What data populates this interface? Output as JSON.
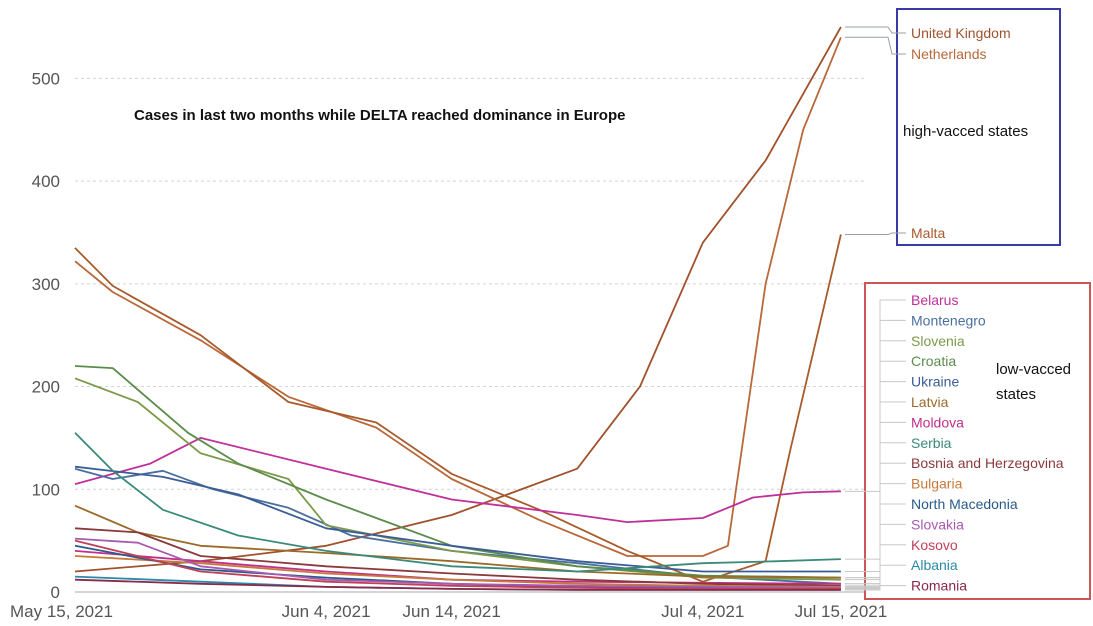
{
  "chart_data": {
    "type": "line",
    "title": "",
    "xlabel": "",
    "ylabel": "",
    "ylim": [
      0,
      550
    ],
    "xlim": [
      "2021-05-15",
      "2021-07-17"
    ],
    "grid": true,
    "y_ticks": [
      "0",
      "100",
      "200",
      "300",
      "400",
      "500"
    ],
    "y_tick_values": [
      0,
      100,
      200,
      300,
      400,
      500
    ],
    "x_ticks": [
      {
        "label": "May 15, 2021",
        "date": "2021-05-15"
      },
      {
        "label": "Jun 4, 2021",
        "date": "2021-06-04"
      },
      {
        "label": "Jun 14, 2021",
        "date": "2021-06-14"
      },
      {
        "label": "Jul 4, 2021",
        "date": "2021-07-04"
      },
      {
        "label": "Jul 15, 2021",
        "date": "2021-07-15"
      }
    ],
    "annotations": {
      "headline": "Cases in last two months while DELTA reached dominance in Europe",
      "high_group": "high-vacced states",
      "low_group_line1": "low-vacced",
      "low_group_line2": "states"
    },
    "group_box_colors": {
      "high": "#3a3aa6",
      "low": "#cc5555"
    },
    "series": [
      {
        "name": "United Kingdom",
        "color": "#a0522d",
        "group": "high",
        "points": [
          [
            "2021-05-15",
            20
          ],
          [
            "2021-05-25",
            30
          ],
          [
            "2021-06-04",
            45
          ],
          [
            "2021-06-14",
            75
          ],
          [
            "2021-06-24",
            120
          ],
          [
            "2021-06-29",
            200
          ],
          [
            "2021-07-04",
            340
          ],
          [
            "2021-07-09",
            420
          ],
          [
            "2021-07-15",
            550
          ]
        ]
      },
      {
        "name": "Netherlands",
        "color": "#b8683a",
        "group": "high",
        "points": [
          [
            "2021-05-15",
            322
          ],
          [
            "2021-05-18",
            292
          ],
          [
            "2021-05-25",
            245
          ],
          [
            "2021-06-01",
            190
          ],
          [
            "2021-06-08",
            160
          ],
          [
            "2021-06-14",
            110
          ],
          [
            "2021-06-21",
            70
          ],
          [
            "2021-06-28",
            35
          ],
          [
            "2021-07-04",
            35
          ],
          [
            "2021-07-06",
            45
          ],
          [
            "2021-07-09",
            300
          ],
          [
            "2021-07-12",
            450
          ],
          [
            "2021-07-15",
            540
          ]
        ]
      },
      {
        "name": "Malta",
        "color": "#a85a2a",
        "group": "high",
        "points": [
          [
            "2021-05-15",
            335
          ],
          [
            "2021-05-18",
            298
          ],
          [
            "2021-05-25",
            250
          ],
          [
            "2021-06-01",
            185
          ],
          [
            "2021-06-08",
            165
          ],
          [
            "2021-06-14",
            115
          ],
          [
            "2021-06-21",
            80
          ],
          [
            "2021-06-28",
            40
          ],
          [
            "2021-07-04",
            10
          ],
          [
            "2021-07-09",
            30
          ],
          [
            "2021-07-11",
            140
          ],
          [
            "2021-07-15",
            348
          ]
        ]
      },
      {
        "name": "Belarus",
        "color": "#c0309a",
        "group": "low",
        "points": [
          [
            "2021-05-15",
            105
          ],
          [
            "2021-05-21",
            125
          ],
          [
            "2021-05-25",
            150
          ],
          [
            "2021-06-04",
            120
          ],
          [
            "2021-06-14",
            90
          ],
          [
            "2021-06-24",
            75
          ],
          [
            "2021-06-28",
            68
          ],
          [
            "2021-07-04",
            72
          ],
          [
            "2021-07-08",
            92
          ],
          [
            "2021-07-12",
            97
          ],
          [
            "2021-07-15",
            98
          ]
        ]
      },
      {
        "name": "Montenegro",
        "color": "#4a6f9f",
        "group": "low",
        "points": [
          [
            "2021-05-15",
            120
          ],
          [
            "2021-05-18",
            110
          ],
          [
            "2021-05-22",
            118
          ],
          [
            "2021-05-26",
            100
          ],
          [
            "2021-06-01",
            82
          ],
          [
            "2021-06-06",
            55
          ],
          [
            "2021-06-14",
            40
          ],
          [
            "2021-06-24",
            28
          ],
          [
            "2021-07-04",
            15
          ],
          [
            "2021-07-15",
            8
          ]
        ]
      },
      {
        "name": "Slovenia",
        "color": "#7c9a4a",
        "group": "low",
        "points": [
          [
            "2021-05-15",
            208
          ],
          [
            "2021-05-20",
            185
          ],
          [
            "2021-05-25",
            135
          ],
          [
            "2021-06-01",
            110
          ],
          [
            "2021-06-04",
            65
          ],
          [
            "2021-06-14",
            40
          ],
          [
            "2021-06-24",
            25
          ],
          [
            "2021-07-04",
            14
          ],
          [
            "2021-07-15",
            12
          ]
        ]
      },
      {
        "name": "Croatia",
        "color": "#5a8c4a",
        "group": "low",
        "points": [
          [
            "2021-05-15",
            220
          ],
          [
            "2021-05-18",
            218
          ],
          [
            "2021-05-24",
            155
          ],
          [
            "2021-05-28",
            125
          ],
          [
            "2021-06-04",
            90
          ],
          [
            "2021-06-14",
            45
          ],
          [
            "2021-06-24",
            25
          ],
          [
            "2021-07-04",
            16
          ],
          [
            "2021-07-15",
            14
          ]
        ]
      },
      {
        "name": "Ukraine",
        "color": "#3a5d95",
        "group": "low",
        "points": [
          [
            "2021-05-15",
            122
          ],
          [
            "2021-05-22",
            112
          ],
          [
            "2021-05-28",
            95
          ],
          [
            "2021-06-04",
            62
          ],
          [
            "2021-06-14",
            45
          ],
          [
            "2021-06-24",
            30
          ],
          [
            "2021-07-04",
            20
          ],
          [
            "2021-07-15",
            20
          ]
        ]
      },
      {
        "name": "Latvia",
        "color": "#9a6a2a",
        "group": "low",
        "points": [
          [
            "2021-05-15",
            84
          ],
          [
            "2021-05-20",
            58
          ],
          [
            "2021-05-25",
            45
          ],
          [
            "2021-06-04",
            38
          ],
          [
            "2021-06-14",
            30
          ],
          [
            "2021-06-24",
            20
          ],
          [
            "2021-07-04",
            15
          ],
          [
            "2021-07-15",
            14
          ]
        ]
      },
      {
        "name": "Moldova",
        "color": "#c0308a",
        "group": "low",
        "points": [
          [
            "2021-05-15",
            40
          ],
          [
            "2021-05-25",
            30
          ],
          [
            "2021-06-04",
            20
          ],
          [
            "2021-06-14",
            12
          ],
          [
            "2021-06-24",
            10
          ],
          [
            "2021-07-04",
            9
          ],
          [
            "2021-07-15",
            8
          ]
        ]
      },
      {
        "name": "Serbia",
        "color": "#3a8a7a",
        "group": "low",
        "points": [
          [
            "2021-05-15",
            155
          ],
          [
            "2021-05-18",
            118
          ],
          [
            "2021-05-22",
            80
          ],
          [
            "2021-05-28",
            55
          ],
          [
            "2021-06-04",
            40
          ],
          [
            "2021-06-14",
            25
          ],
          [
            "2021-06-24",
            20
          ],
          [
            "2021-07-04",
            28
          ],
          [
            "2021-07-10",
            30
          ],
          [
            "2021-07-15",
            32
          ]
        ]
      },
      {
        "name": "Bosnia and Herzegovina",
        "color": "#8a3a3a",
        "group": "low",
        "points": [
          [
            "2021-05-15",
            62
          ],
          [
            "2021-05-20",
            58
          ],
          [
            "2021-05-25",
            35
          ],
          [
            "2021-06-04",
            25
          ],
          [
            "2021-06-14",
            18
          ],
          [
            "2021-06-24",
            12
          ],
          [
            "2021-07-04",
            8
          ],
          [
            "2021-07-15",
            6
          ]
        ]
      },
      {
        "name": "Bulgaria",
        "color": "#c87a3a",
        "group": "low",
        "points": [
          [
            "2021-05-15",
            35
          ],
          [
            "2021-05-25",
            28
          ],
          [
            "2021-06-04",
            18
          ],
          [
            "2021-06-14",
            12
          ],
          [
            "2021-06-24",
            8
          ],
          [
            "2021-07-04",
            6
          ],
          [
            "2021-07-15",
            5
          ]
        ]
      },
      {
        "name": "North Macedonia",
        "color": "#2a5a8a",
        "group": "low",
        "points": [
          [
            "2021-05-15",
            45
          ],
          [
            "2021-05-25",
            22
          ],
          [
            "2021-06-04",
            14
          ],
          [
            "2021-06-14",
            8
          ],
          [
            "2021-06-24",
            5
          ],
          [
            "2021-07-04",
            4
          ],
          [
            "2021-07-15",
            4
          ]
        ]
      },
      {
        "name": "Slovakia",
        "color": "#a85ab0",
        "group": "low",
        "points": [
          [
            "2021-05-15",
            52
          ],
          [
            "2021-05-20",
            48
          ],
          [
            "2021-05-25",
            25
          ],
          [
            "2021-06-04",
            12
          ],
          [
            "2021-06-14",
            8
          ],
          [
            "2021-06-24",
            6
          ],
          [
            "2021-07-04",
            5
          ],
          [
            "2021-07-15",
            4
          ]
        ]
      },
      {
        "name": "Kosovo",
        "color": "#c0405a",
        "group": "low",
        "points": [
          [
            "2021-05-15",
            50
          ],
          [
            "2021-05-25",
            20
          ],
          [
            "2021-06-04",
            10
          ],
          [
            "2021-06-14",
            6
          ],
          [
            "2021-06-24",
            4
          ],
          [
            "2021-07-04",
            3
          ],
          [
            "2021-07-15",
            3
          ]
        ]
      },
      {
        "name": "Albania",
        "color": "#2a8aaa",
        "group": "low",
        "points": [
          [
            "2021-05-15",
            15
          ],
          [
            "2021-05-25",
            10
          ],
          [
            "2021-06-04",
            5
          ],
          [
            "2021-06-14",
            3
          ],
          [
            "2021-06-24",
            2
          ],
          [
            "2021-07-04",
            2
          ],
          [
            "2021-07-15",
            2
          ]
        ]
      },
      {
        "name": "Romania",
        "color": "#8a2a4a",
        "group": "low",
        "points": [
          [
            "2021-05-15",
            12
          ],
          [
            "2021-05-25",
            8
          ],
          [
            "2021-06-04",
            5
          ],
          [
            "2021-06-14",
            3
          ],
          [
            "2021-06-24",
            2
          ],
          [
            "2021-07-04",
            2
          ],
          [
            "2021-07-15",
            2
          ]
        ]
      }
    ]
  }
}
